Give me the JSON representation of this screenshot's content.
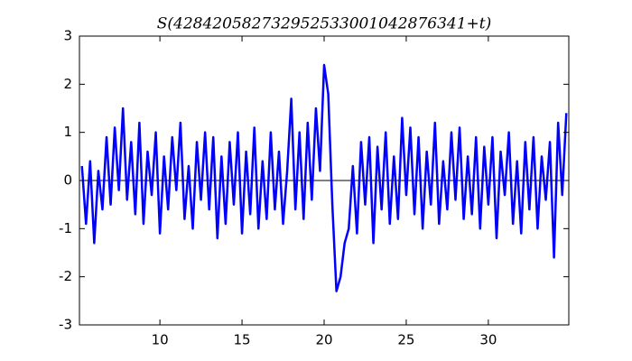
{
  "chart_data": {
    "type": "line",
    "title": "S(428420582732952533001042876341+t)",
    "x": [
      5.25,
      5.5,
      5.75,
      6,
      6.25,
      6.5,
      6.75,
      7,
      7.25,
      7.5,
      7.75,
      8,
      8.25,
      8.5,
      8.75,
      9,
      9.25,
      9.5,
      9.75,
      10,
      10.25,
      10.5,
      10.75,
      11,
      11.25,
      11.5,
      11.75,
      12,
      12.25,
      12.5,
      12.75,
      13,
      13.25,
      13.5,
      13.75,
      14,
      14.25,
      14.5,
      14.75,
      15,
      15.25,
      15.5,
      15.75,
      16,
      16.25,
      16.5,
      16.75,
      17,
      17.25,
      17.5,
      17.75,
      18,
      18.25,
      18.5,
      18.75,
      19,
      19.25,
      19.5,
      19.75,
      20,
      20.25,
      20.5,
      20.75,
      21,
      21.25,
      21.5,
      21.75,
      22,
      22.25,
      22.5,
      22.75,
      23,
      23.25,
      23.5,
      23.75,
      24,
      24.25,
      24.5,
      24.75,
      25,
      25.25,
      25.5,
      25.75,
      26,
      26.25,
      26.5,
      26.75,
      27,
      27.25,
      27.5,
      27.75,
      28,
      28.25,
      28.5,
      28.75,
      29,
      29.25,
      29.5,
      29.75,
      30,
      30.25,
      30.5,
      30.75,
      31,
      31.25,
      31.5,
      31.75,
      32,
      32.25,
      32.5,
      32.75,
      33,
      33.25,
      33.5,
      33.75,
      34,
      34.25,
      34.5,
      34.75
    ],
    "values": [
      0.3,
      -0.9,
      0.4,
      -1.3,
      0.2,
      -0.6,
      0.9,
      -0.5,
      1.1,
      -0.2,
      1.5,
      -0.4,
      0.8,
      -0.7,
      1.2,
      -0.9,
      0.6,
      -0.3,
      1.0,
      -1.1,
      0.5,
      -0.6,
      0.9,
      -0.2,
      1.2,
      -0.8,
      0.3,
      -1.0,
      0.8,
      -0.4,
      1.0,
      -0.6,
      0.9,
      -1.2,
      0.5,
      -0.9,
      0.8,
      -0.5,
      1.0,
      -1.1,
      0.6,
      -0.7,
      1.1,
      -1.0,
      0.4,
      -0.8,
      1.0,
      -0.6,
      0.6,
      -0.9,
      0.2,
      1.7,
      -0.6,
      1.0,
      -0.8,
      1.2,
      -0.4,
      1.5,
      0.2,
      2.4,
      1.8,
      -0.5,
      -2.3,
      -2.0,
      -1.3,
      -1.0,
      0.3,
      -1.1,
      0.8,
      -0.5,
      0.9,
      -1.3,
      0.7,
      -0.6,
      1.0,
      -0.9,
      0.5,
      -0.8,
      1.3,
      -0.3,
      1.1,
      -0.7,
      0.9,
      -1.0,
      0.6,
      -0.5,
      1.2,
      -0.9,
      0.4,
      -0.6,
      1.0,
      -0.4,
      1.1,
      -0.8,
      0.5,
      -0.7,
      0.9,
      -1.0,
      0.7,
      -0.5,
      0.9,
      -1.2,
      0.6,
      -0.3,
      1.0,
      -0.9,
      0.4,
      -1.1,
      0.8,
      -0.6,
      0.9,
      -1.0,
      0.5,
      -0.4,
      0.8,
      -1.6,
      1.2,
      -0.3,
      1.4
    ],
    "color": "#0000ff",
    "xlim": [
      5.1,
      34.9
    ],
    "xticks": [
      10,
      15,
      20,
      25,
      30
    ],
    "ylim": [
      -3,
      3
    ],
    "yticks": [
      -3,
      -2,
      -1,
      0,
      1,
      2,
      3
    ]
  }
}
